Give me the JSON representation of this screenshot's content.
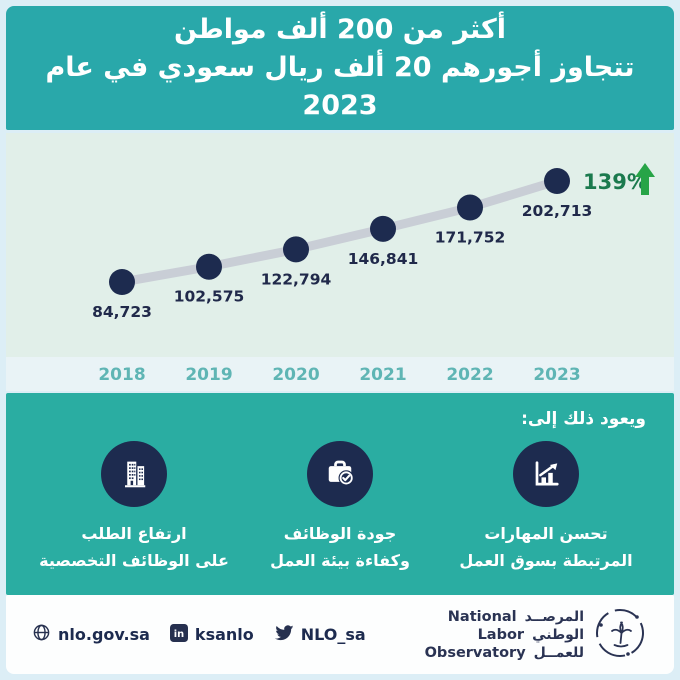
{
  "header": {
    "line1": "أكثر من 200 ألف مواطن",
    "line2": "تتجاوز أجورهم 20 ألف ريال سعودي في عام 2023"
  },
  "chart_data": {
    "type": "line",
    "title": "",
    "xlabel": "",
    "ylabel": "",
    "categories": [
      "2018",
      "2019",
      "2020",
      "2021",
      "2022",
      "2023"
    ],
    "values": [
      84723,
      102575,
      122794,
      146841,
      171752,
      202713
    ],
    "value_labels": [
      "84,723",
      "102,575",
      "122,794",
      "146,841",
      "171,752",
      "202,713"
    ],
    "growth_label": "139%",
    "ylim": [
      80000,
      210000
    ],
    "grid": false,
    "legend": false,
    "plot_bg": "#e1efe9",
    "axis_bg": "#e9f3f6",
    "line_color": "#c9ced6",
    "point_color": "#1d2b4f",
    "label_color": "#20294a",
    "year_color": "#5fb5b4",
    "growth_color": "#1b7a4e",
    "arrow_color": "#27a447"
  },
  "reasons": {
    "heading": "ويعود ذلك إلى:",
    "items": [
      {
        "icon": "bar-chart-up-icon",
        "line1": "تحسن المهارات",
        "line2": "المرتبطة بسوق العمل"
      },
      {
        "icon": "briefcase-check-icon",
        "line1": "جودة الوظائف",
        "line2": "وكفاءة بيئة العمل"
      },
      {
        "icon": "buildings-icon",
        "line1": "ارتفاع الطلب",
        "line2": "على الوظائف التخصصية"
      }
    ]
  },
  "footer": {
    "links": [
      {
        "icon": "globe-icon",
        "label": "nlo.gov.sa"
      },
      {
        "icon": "linkedin-icon",
        "label": "ksanlo"
      },
      {
        "icon": "twitter-icon",
        "label": "NLO_sa"
      }
    ],
    "logo": {
      "en": [
        "National",
        "Labor",
        "Observatory"
      ],
      "ar": [
        "المرصــد",
        "الوطني",
        "للعمــل"
      ]
    }
  },
  "colors": {
    "header_bg": "#29a8aa",
    "section_bg": "#2aada2",
    "navy": "#1d2b4f"
  }
}
